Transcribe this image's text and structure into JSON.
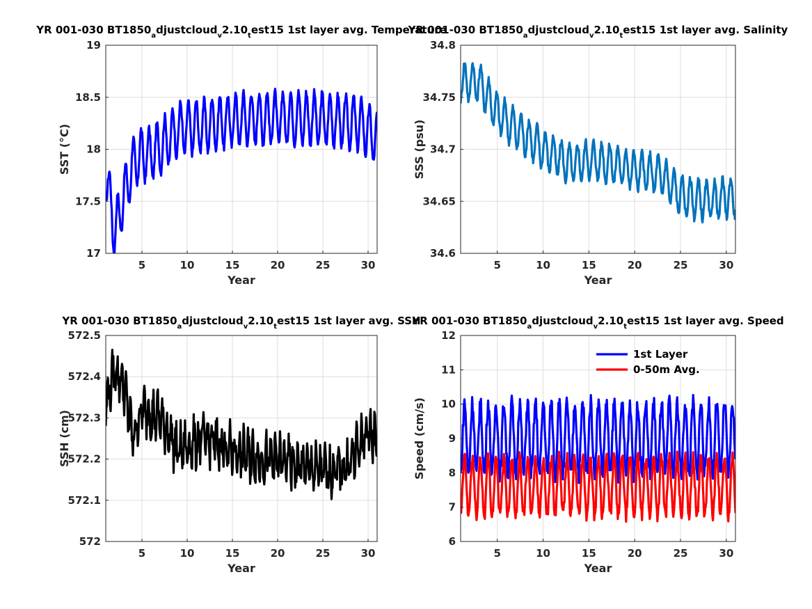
{
  "chart_data": [
    {
      "type": "line",
      "title": {
        "pre": "YR 001-030 BT1850",
        "s1": "a",
        "m1": "djustcloud",
        "s2": "v",
        "m2": "2.10",
        "s3": "t",
        "post": "est15 1st layer avg. Temperature"
      },
      "xlabel": "Year",
      "ylabel": "SST (°C)",
      "xlim": [
        1,
        31
      ],
      "ylim": [
        17,
        19
      ],
      "xticks": [
        5,
        10,
        15,
        20,
        25,
        30
      ],
      "yticks": [
        17,
        17.5,
        18,
        18.5,
        19
      ],
      "ytick_labels": [
        "17",
        "17.5",
        "18",
        "18.5",
        "19"
      ],
      "grid": true,
      "series": [
        {
          "color": "#0000ff",
          "base": [
            [
              1,
              17.78
            ],
            [
              2,
              17.2
            ],
            [
              3,
              17.55
            ],
            [
              4,
              17.85
            ],
            [
              5,
              17.95
            ],
            [
              6,
              17.95
            ],
            [
              7,
              18.02
            ],
            [
              8,
              18.1
            ],
            [
              9,
              18.2
            ],
            [
              10,
              18.2
            ],
            [
              11,
              18.22
            ],
            [
              12,
              18.22
            ],
            [
              13,
              18.25
            ],
            [
              15,
              18.28
            ],
            [
              18,
              18.3
            ],
            [
              20,
              18.3
            ],
            [
              23,
              18.3
            ],
            [
              26,
              18.28
            ],
            [
              29,
              18.25
            ],
            [
              31,
              18.1
            ]
          ],
          "amp": 0.25,
          "period": 0.87,
          "noise": 0.04
        }
      ]
    },
    {
      "type": "line",
      "title": {
        "pre": "YR 001-030 BT1850",
        "s1": "a",
        "m1": "djustcloud",
        "s2": "v",
        "m2": "2.10",
        "s3": "t",
        "post": "est15 1st layer avg. Salinity"
      },
      "xlabel": "Year",
      "ylabel": "SSS (psu)",
      "xlim": [
        1,
        31
      ],
      "ylim": [
        34.6,
        34.8
      ],
      "xticks": [
        5,
        10,
        15,
        20,
        25,
        30
      ],
      "yticks": [
        34.6,
        34.65,
        34.7,
        34.75,
        34.8
      ],
      "ytick_labels": [
        "34.6",
        "34.65",
        "34.7",
        "34.75",
        "34.8"
      ],
      "grid": true,
      "series": [
        {
          "color": "#0072bd",
          "base": [
            [
              1,
              34.765
            ],
            [
              3,
              34.765
            ],
            [
              5,
              34.735
            ],
            [
              7,
              34.72
            ],
            [
              10,
              34.7
            ],
            [
              13,
              34.685
            ],
            [
              15,
              34.69
            ],
            [
              18,
              34.685
            ],
            [
              20,
              34.68
            ],
            [
              23,
              34.675
            ],
            [
              25,
              34.655
            ],
            [
              28,
              34.65
            ],
            [
              31,
              34.655
            ]
          ],
          "amp": 0.018,
          "period": 0.88,
          "noise": 0.004
        }
      ]
    },
    {
      "type": "line",
      "title": {
        "pre": "YR 001-030 BT1850",
        "s1": "a",
        "m1": "djustcloud",
        "s2": "v",
        "m2": "2.10",
        "s3": "t",
        "post": "est15 1st layer avg. SSH"
      },
      "xlabel": "Year",
      "ylabel": "SSH (cm)",
      "xlim": [
        1,
        31
      ],
      "ylim": [
        572,
        572.5
      ],
      "xticks": [
        5,
        10,
        15,
        20,
        25,
        30
      ],
      "yticks": [
        572,
        572.1,
        572.2,
        572.3,
        572.4,
        572.5
      ],
      "ytick_labels": [
        "572",
        "572.1",
        "572.2",
        "572.3",
        "572.4",
        "572.5"
      ],
      "grid": true,
      "series": [
        {
          "color": "#000000",
          "base": [
            [
              1,
              572.33
            ],
            [
              2,
              572.42
            ],
            [
              3,
              572.38
            ],
            [
              4,
              572.25
            ],
            [
              5,
              572.32
            ],
            [
              7,
              572.3
            ],
            [
              9,
              572.22
            ],
            [
              12,
              572.25
            ],
            [
              15,
              572.22
            ],
            [
              18,
              572.2
            ],
            [
              20,
              572.2
            ],
            [
              23,
              572.18
            ],
            [
              26,
              572.17
            ],
            [
              28,
              572.19
            ],
            [
              30,
              572.27
            ],
            [
              31,
              572.25
            ]
          ],
          "amp": 0.04,
          "period": 0.5,
          "noise": 0.035
        }
      ]
    },
    {
      "type": "line",
      "title": {
        "pre": "YR 001-030 BT1850",
        "s1": "a",
        "m1": "djustcloud",
        "s2": "v",
        "m2": "2.10",
        "s3": "t",
        "post": "est15 1st layer avg. Speed"
      },
      "xlabel": "Year",
      "ylabel": "Speed (cm/s)",
      "xlim": [
        1,
        31
      ],
      "ylim": [
        6,
        12
      ],
      "xticks": [
        5,
        10,
        15,
        20,
        25,
        30
      ],
      "yticks": [
        6,
        7,
        8,
        9,
        10,
        11,
        12
      ],
      "ytick_labels": [
        "6",
        "7",
        "8",
        "9",
        "10",
        "11",
        "12"
      ],
      "grid": true,
      "legend_position": "top-right",
      "series": [
        {
          "name": "1st Layer",
          "color": "#0000ff",
          "base": [
            [
              1,
              9.0
            ],
            [
              31,
              9.0
            ]
          ],
          "amp": 1.05,
          "period": 0.86,
          "noise": 0.25
        },
        {
          "name": "0-50m Avg.",
          "color": "#ff0000",
          "base": [
            [
              1,
              7.6
            ],
            [
              31,
              7.6
            ]
          ],
          "amp": 0.85,
          "period": 0.86,
          "noise": 0.18
        }
      ]
    }
  ]
}
